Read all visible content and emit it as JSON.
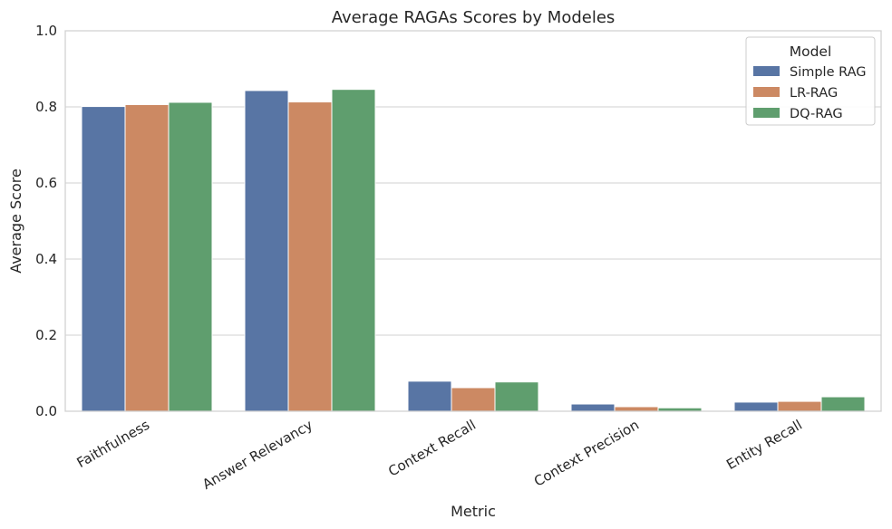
{
  "chart_data": {
    "type": "bar",
    "title": "Average RAGAs Scores by Modeles",
    "xlabel": "Metric",
    "ylabel": "Average Score",
    "ylim": [
      0,
      1.0
    ],
    "yticks": [
      "0.0",
      "0.2",
      "0.4",
      "0.6",
      "0.8",
      "1.0"
    ],
    "categories": [
      "Faithfulness",
      "Answer Relevancy",
      "Context Recall",
      "Context Precision",
      "Entity Recall"
    ],
    "series": [
      {
        "name": "Simple RAG",
        "color": "#5875a4",
        "values": [
          0.801,
          0.843,
          0.079,
          0.019,
          0.024
        ]
      },
      {
        "name": "LR-RAG",
        "color": "#cc8963",
        "values": [
          0.806,
          0.813,
          0.062,
          0.012,
          0.026
        ]
      },
      {
        "name": "DQ-RAG",
        "color": "#5f9e6e",
        "values": [
          0.812,
          0.846,
          0.077,
          0.009,
          0.038
        ]
      }
    ],
    "grid": "y",
    "legend": {
      "title": "Model",
      "position": "top-right"
    }
  }
}
